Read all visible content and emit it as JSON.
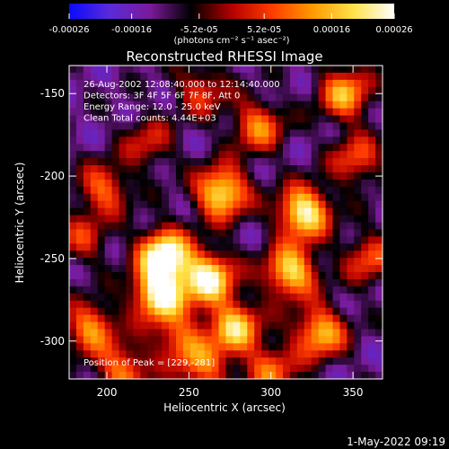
{
  "chart_data": {
    "type": "heatmap",
    "title": "Reconstructed RHESSI Image",
    "xlabel": "Heliocentric X (arcsec)",
    "ylabel": "Heliocentric Y (arcsec)",
    "xlim": [
      177,
      368
    ],
    "ylim": [
      -323,
      -133
    ],
    "x_ticks": [
      "200",
      "250",
      "300",
      "350"
    ],
    "x_tick_values": [
      200,
      250,
      300,
      350
    ],
    "y_ticks": [
      "-150",
      "-200",
      "-250",
      "-300"
    ],
    "y_tick_values": [
      -150,
      -200,
      -250,
      -300
    ],
    "colorbar": {
      "ticks": [
        "-0.00026",
        "-0.00016",
        "-5.2e-05",
        "5.2e-05",
        "0.00016",
        "0.00026"
      ],
      "tick_values": [
        -0.00026,
        -0.00016,
        -5.2e-05,
        5.2e-05,
        0.00016,
        0.00026
      ],
      "range": [
        -0.00026,
        0.00026
      ],
      "units": "(photons cm⁻² s⁻¹ asec⁻²)",
      "colors": [
        "#0a0aff",
        "#5a2bd8",
        "#7a1a9a",
        "#000000",
        "#b40000",
        "#ff3c00",
        "#ff9a00",
        "#ffe24a",
        "#ffffff"
      ]
    },
    "annotations": [
      "26-Aug-2002 12:08:40.000 to 12:14:40.000",
      "Detectors: 3F 4F 5F 6F 7F 8F, Att 0",
      "Energy Range: 12.0 - 25.0 keV",
      "Clean     Total counts: 4.44E+03"
    ],
    "peak_label": "Position of Peak = [229,-281]",
    "peak": [
      229,
      -281
    ],
    "blobs": [
      {
        "x": 235,
        "y": -248,
        "v": 1.0
      },
      {
        "x": 232,
        "y": -272,
        "v": 0.95
      },
      {
        "x": 270,
        "y": -210,
        "v": 0.85
      },
      {
        "x": 262,
        "y": -262,
        "v": 0.9
      },
      {
        "x": 278,
        "y": -292,
        "v": 0.75
      },
      {
        "x": 320,
        "y": -222,
        "v": 0.9
      },
      {
        "x": 312,
        "y": -258,
        "v": 0.8
      },
      {
        "x": 330,
        "y": -295,
        "v": 0.7
      },
      {
        "x": 292,
        "y": -170,
        "v": 0.55
      },
      {
        "x": 345,
        "y": -150,
        "v": 0.65
      },
      {
        "x": 360,
        "y": -250,
        "v": 0.45
      },
      {
        "x": 190,
        "y": -292,
        "v": 0.6
      },
      {
        "x": 198,
        "y": -208,
        "v": 0.5
      },
      {
        "x": 210,
        "y": -318,
        "v": 0.55
      },
      {
        "x": 260,
        "y": -318,
        "v": 0.45
      },
      {
        "x": 300,
        "y": -318,
        "v": 0.5
      },
      {
        "x": 225,
        "y": -180,
        "v": 0.35
      },
      {
        "x": 258,
        "y": -148,
        "v": 0.4
      },
      {
        "x": 185,
        "y": -238,
        "v": 0.35
      },
      {
        "x": 352,
        "y": -190,
        "v": 0.45
      },
      {
        "x": 245,
        "y": -300,
        "v": 0.5
      }
    ]
  },
  "footer": {
    "date": "1-May-2022 09:19"
  }
}
